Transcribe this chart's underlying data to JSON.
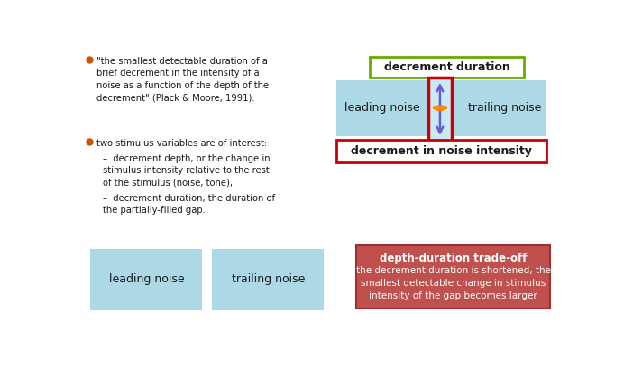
{
  "bg_color": "#ffffff",
  "text_color": "#1a1a1a",
  "bullet_color": "#cc5500",
  "bullet1": "\"the smallest detectable duration of a\nbrief decrement in the intensity of a\nnoise as a function of the depth of the\ndecrement\" (Plack & Moore, 1991).",
  "bullet2": "two stimulus variables are of interest:",
  "sub1": "decrement depth, or the change in\nstimulus intensity relative to the rest\nof the stimulus (noise, tone),",
  "sub2": "decrement duration, the duration of\nthe partially-filled gap.",
  "light_blue": "#add8e6",
  "lighter_blue": "#c8eaf5",
  "green_border": "#6aaa00",
  "red_border": "#cc0000",
  "orange_arrow": "#ff8c00",
  "purple_arrow": "#6a5acd",
  "tradeoff_bg": "#c0504d",
  "tradeoff_title": "depth-duration trade-off",
  "tradeoff_body": "the decrement duration is shortened, the\nsmallest detectable change in stimulus\nintensity of the gap becomes larger",
  "label_leading": "leading noise",
  "label_trailing": "trailing noise",
  "label_decrement_duration": "decrement duration",
  "label_decrement_intensity": "decrement in noise intensity"
}
